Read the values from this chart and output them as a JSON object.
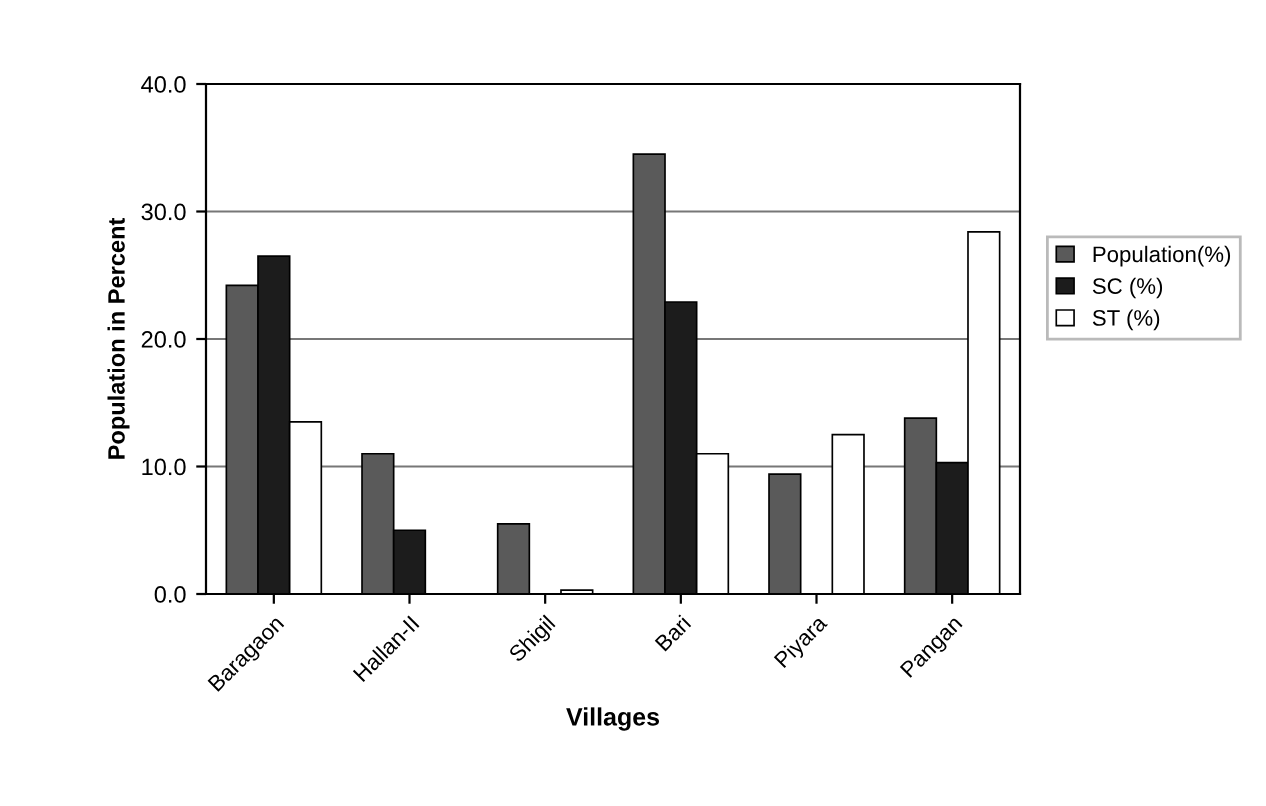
{
  "chart_data": {
    "type": "bar",
    "xlabel": "Villages",
    "ylabel": "Population in Percent",
    "categories": [
      "Baragaon",
      "Hallan-II",
      "Shigil",
      "Bari",
      "Piyara",
      "Pangan"
    ],
    "series": [
      {
        "name": "Population(%)",
        "color": "#5a5a5a",
        "values": [
          24.2,
          11.0,
          5.5,
          34.5,
          9.4,
          13.8
        ]
      },
      {
        "name": "SC (%)",
        "color": "#1c1c1c",
        "values": [
          26.5,
          5.0,
          null,
          22.9,
          null,
          10.3
        ]
      },
      {
        "name": "ST (%)",
        "color": "#ffffff",
        "values": [
          13.5,
          null,
          0.3,
          11.0,
          12.5,
          28.4
        ]
      }
    ],
    "ylim": [
      0,
      40
    ],
    "yticks": [
      {
        "value": 0,
        "label": "0.0"
      },
      {
        "value": 10,
        "label": "10.0"
      },
      {
        "value": 20,
        "label": "20.0"
      },
      {
        "value": 30,
        "label": "30.0"
      },
      {
        "value": 40,
        "label": "40.0"
      }
    ],
    "grid": "y",
    "legend": "right"
  }
}
